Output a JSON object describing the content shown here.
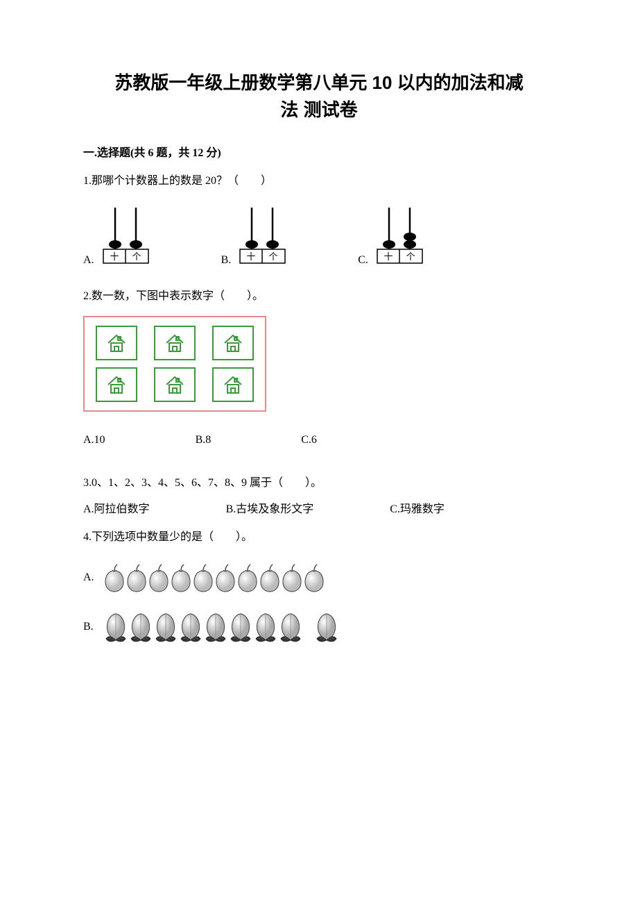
{
  "title_line1": "苏教版一年级上册数学第八单元 10 以内的加法和减",
  "title_line2": "法 测试卷",
  "section1": "一.选择题(共 6 题，共 12 分)",
  "q1": {
    "text": "1.那哪个计数器上的数是 20？（　　）",
    "opts": [
      "A.",
      "B.",
      "C."
    ],
    "abacus_labels": {
      "tens": "十",
      "ones": "个"
    },
    "abacus_data": [
      {
        "tens_beads": 1,
        "ones_beads": 1
      },
      {
        "tens_beads": 1,
        "ones_beads": 1
      },
      {
        "tens_beads": 1,
        "ones_beads": 2
      }
    ]
  },
  "q2": {
    "text": "2.数一数，下图中表示数字（　　）。",
    "house_color": "#3a9b3a",
    "border_color": "#e98a8a",
    "rows": 2,
    "cols": 3,
    "opts": [
      {
        "label": "A.10"
      },
      {
        "label": "B.8"
      },
      {
        "label": "C.6"
      }
    ]
  },
  "q3": {
    "text": "3.0、1、2、3、4、5、6、7、8、9 属于（　　）。",
    "opts": [
      {
        "label": "A.阿拉伯数字"
      },
      {
        "label": "B.古埃及象形文字"
      },
      {
        "label": "C.玛雅数字"
      }
    ]
  },
  "q4": {
    "text": "4.下列选项中数量少的是（　　）。",
    "opts": [
      {
        "label": "A.",
        "type": "apples",
        "count": 10
      },
      {
        "label": "B.",
        "type": "peaches",
        "count": 9
      }
    ]
  }
}
